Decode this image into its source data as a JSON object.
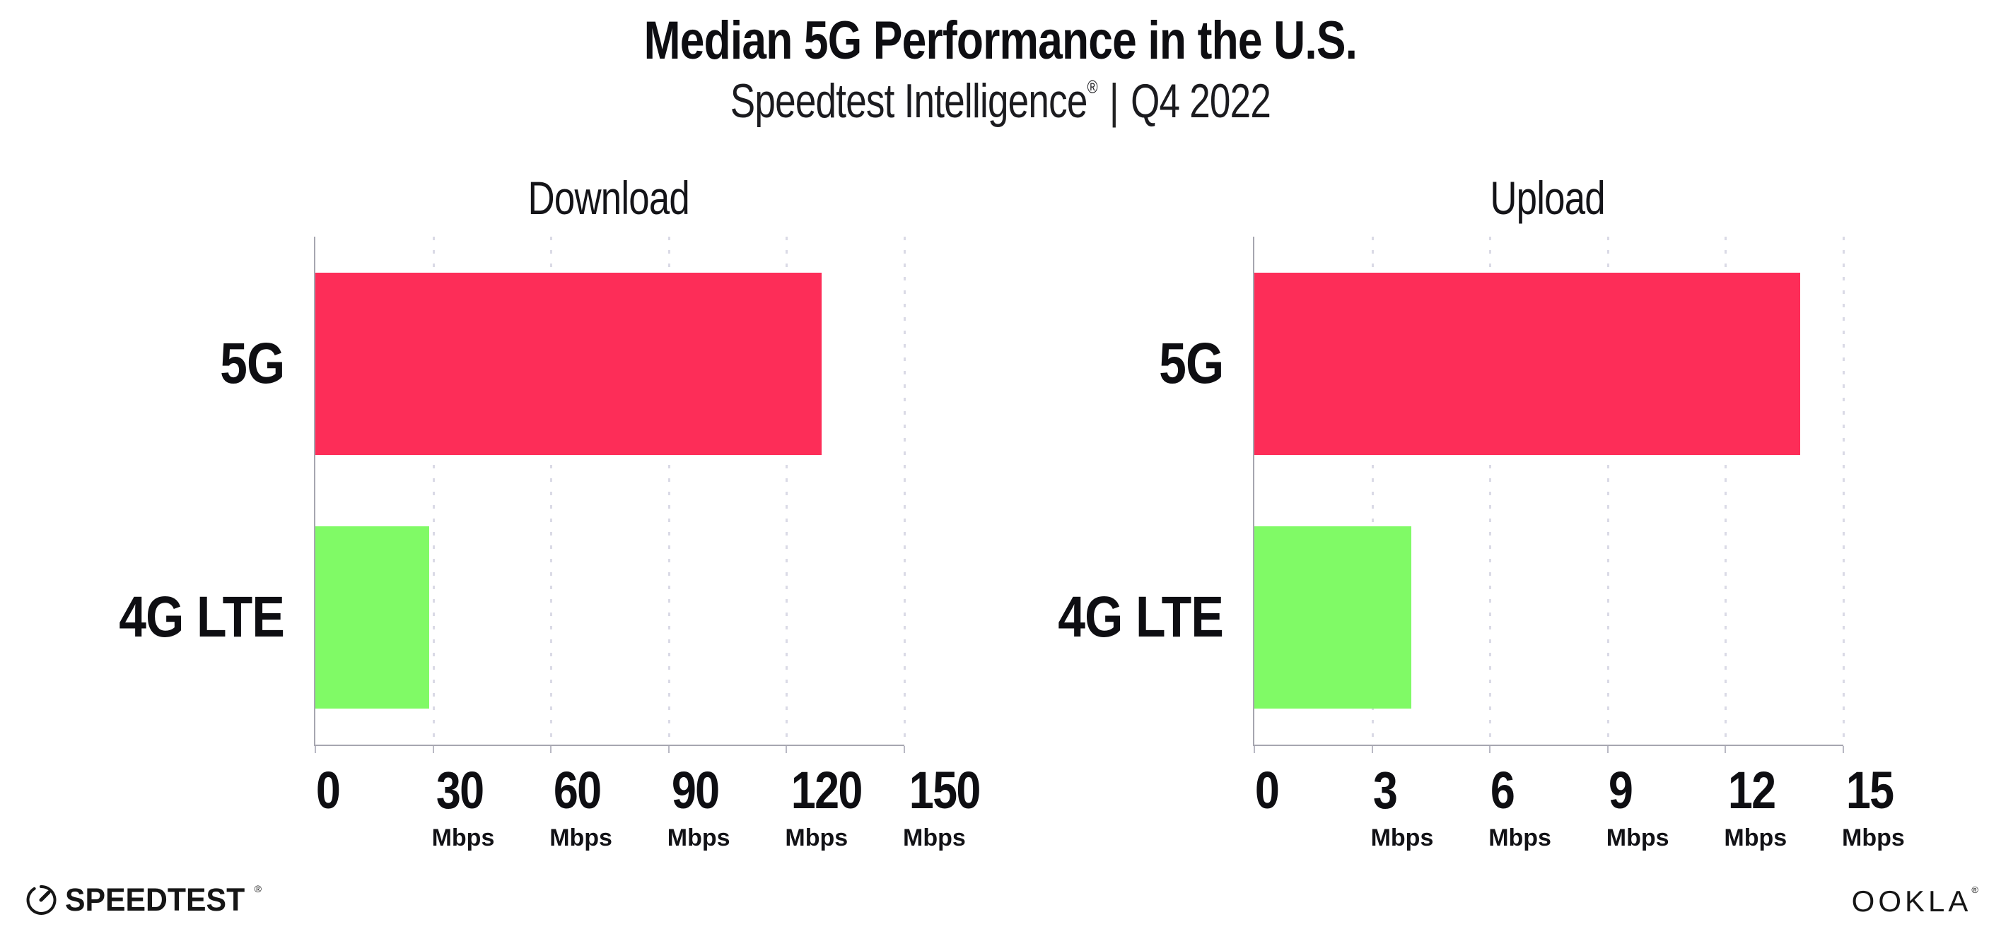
{
  "header": {
    "title": "Median 5G Performance in the U.S.",
    "subtitle_brand": "Speedtest Intelligence",
    "subtitle_reg": "®",
    "subtitle_divider": "|",
    "subtitle_period": "Q4 2022"
  },
  "footer": {
    "speedtest_logo_text": "SPEEDTEST",
    "speedtest_reg": "®",
    "ookla_logo_text": "OOKLA",
    "ookla_reg": "®"
  },
  "colors": {
    "bar_5g": "#fd2d58",
    "bar_4g_lte": "#80fa66",
    "axis_line": "#a6a6b0",
    "gridline_dots": "#dadae6",
    "text": "#0e0e12"
  },
  "chart_data": [
    {
      "type": "bar",
      "orientation": "horizontal",
      "title": "Download",
      "categories": [
        "5G",
        "4G LTE"
      ],
      "values": [
        129,
        29
      ],
      "bar_colors": [
        "#fd2d58",
        "#80fa66"
      ],
      "unit": "Mbps",
      "xlim": [
        0,
        150
      ],
      "xticks": [
        0,
        30,
        60,
        90,
        120,
        150
      ],
      "tick_unit_label": "Mbps",
      "grid": "vertical-dotted",
      "legend": "none"
    },
    {
      "type": "bar",
      "orientation": "horizontal",
      "title": "Upload",
      "categories": [
        "5G",
        "4G LTE"
      ],
      "values": [
        13.9,
        4
      ],
      "bar_colors": [
        "#fd2d58",
        "#80fa66"
      ],
      "unit": "Mbps",
      "xlim": [
        0,
        15
      ],
      "xticks": [
        0,
        3,
        6,
        9,
        12,
        15
      ],
      "tick_unit_label": "Mbps",
      "grid": "vertical-dotted",
      "legend": "none"
    }
  ],
  "layout": {
    "plot_lefts": [
      444,
      1772
    ]
  }
}
